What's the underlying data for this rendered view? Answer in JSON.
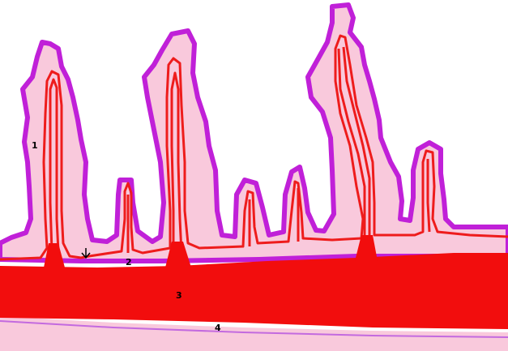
{
  "labels": {
    "one": "1",
    "two": "2",
    "three": "3",
    "four": "4"
  },
  "colors": {
    "background": "#ffffff",
    "outer_layer_fill": "#f9c9dc",
    "outer_outline": "#c020d8",
    "inner_line": "#ee1c1c",
    "solid_band": "#f20d0d",
    "bottom_line": "#c36adf",
    "arrow": "#000000",
    "label_text": "#000000"
  }
}
